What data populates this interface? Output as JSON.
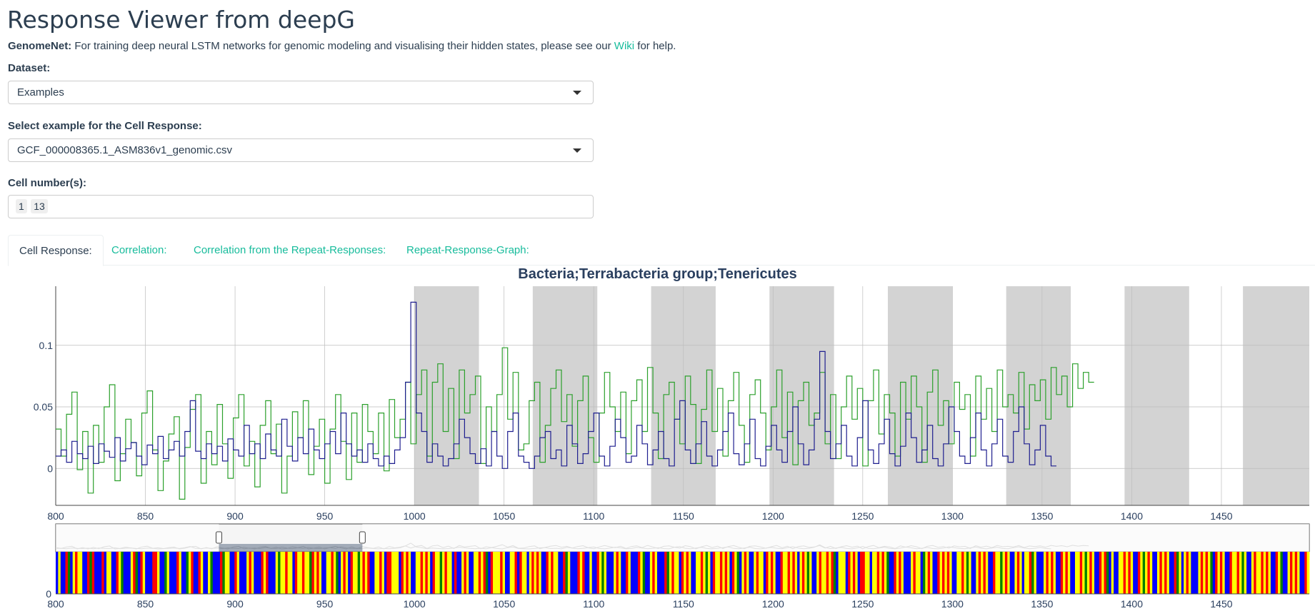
{
  "header": {
    "title": "Response Viewer from deepG",
    "help_prefix": "GenomeNet:",
    "help_text": " For training deep neural LSTM networks for genomic modeling and visualising their hidden states, please see our ",
    "help_link": "Wiki",
    "help_suffix": " for help."
  },
  "controls": {
    "dataset_label": "Dataset:",
    "dataset_value": "Examples",
    "example_label": "Select example for the Cell Response:",
    "example_value": "GCF_000008365.1_ASM836v1_genomic.csv",
    "cells_label": "Cell number(s):",
    "cells": [
      "1",
      "13"
    ]
  },
  "tabs": [
    {
      "label": "Cell Response:",
      "active": true
    },
    {
      "label": "Correlation:",
      "active": false
    },
    {
      "label": "Correlation from the Repeat-Responses:",
      "active": false
    },
    {
      "label": "Repeat-Response-Graph:",
      "active": false
    }
  ],
  "colors": {
    "series_green": "#2ca02c",
    "series_blue": "#1f1f8f",
    "highlight_band": "#d3d3d3",
    "nucleotide_A": "#0000ff",
    "nucleotide_C": "#ffff00",
    "nucleotide_G": "#ff0000",
    "nucleotide_T": "#008000",
    "accent": "#18bc9c"
  },
  "chart_data": {
    "type": "line",
    "title": "Bacteria;Terrabacteria group;Tenericutes",
    "xlabel": "",
    "ylabel": "",
    "xlim": [
      800,
      1499
    ],
    "ylim": [
      -0.03,
      0.148
    ],
    "x_ticks": [
      "800",
      "850",
      "900",
      "950",
      "1000",
      "1050",
      "1100",
      "1150",
      "1200",
      "1250",
      "1300",
      "1350",
      "1400",
      "1450"
    ],
    "y_ticks": [
      "0",
      "0.05",
      "0.1"
    ],
    "grid": true,
    "highlight_regions": [
      [
        1000,
        1036
      ],
      [
        1066,
        1102
      ],
      [
        1132,
        1168
      ],
      [
        1198,
        1234
      ],
      [
        1264,
        1300
      ],
      [
        1330,
        1366
      ],
      [
        1396,
        1432
      ],
      [
        1462,
        1499
      ]
    ],
    "series": [
      {
        "color": "green",
        "x_start": 800,
        "x_step": 3,
        "values": [
          0.032,
          0.01,
          0.044,
          0.062,
          -0.001,
          0.03,
          -0.02,
          0.035,
          0.005,
          0.05,
          0.068,
          -0.01,
          0.012,
          0.04,
          0.021,
          -0.006,
          0.045,
          0.063,
          0.015,
          -0.018,
          0.006,
          0.028,
          0.042,
          -0.025,
          0.017,
          0.048,
          0.06,
          -0.012,
          0.03,
          0.003,
          0.052,
          0.02,
          -0.008,
          0.041,
          0.06,
          0.002,
          0.022,
          -0.015,
          0.035,
          0.055,
          0.012,
          0.036,
          -0.02,
          0.01,
          0.046,
          0.025,
          0.055,
          -0.005,
          0.018,
          0.04,
          -0.012,
          0.032,
          0.06,
          0.022,
          -0.009,
          0.045,
          0.005,
          0.052,
          0.03,
          0.012,
          0.045,
          -0.002,
          0.056,
          0.025,
          0.04,
          0.07,
          0.02,
          0.06,
          0.08,
          0.01,
          0.07,
          0.085,
          0.03,
          0.065,
          0.008,
          0.08,
          0.045,
          0.06,
          0.075,
          0.004,
          0.05,
          0.03,
          0.06,
          0.098,
          0.04,
          0.078,
          0.015,
          0.02,
          0.055,
          0.07,
          0.005,
          0.035,
          0.065,
          0.08,
          0.038,
          0.06,
          0.018,
          0.055,
          0.075,
          0.025,
          0.005,
          0.045,
          0.078,
          0.05,
          0.03,
          0.062,
          0.012,
          0.055,
          0.072,
          0.03,
          0.082,
          0.045,
          0.008,
          0.06,
          0.07,
          0.04,
          0.02,
          0.075,
          0.052,
          0.004,
          0.048,
          0.08,
          0.03,
          0.065,
          0.01,
          0.055,
          0.078,
          0.035,
          0.005,
          0.06,
          0.072,
          0.045,
          0.015,
          0.05,
          0.08,
          0.025,
          0.062,
          0.003,
          0.055,
          0.07,
          0.035,
          0.045,
          0.078,
          0.02,
          0.06,
          0.008,
          0.05,
          0.075,
          0.04,
          0.065,
          0.002,
          0.055,
          0.08,
          0.028,
          0.06,
          0.045,
          0.01,
          0.07,
          0.04,
          0.075,
          0.05,
          0.005,
          0.062,
          0.08,
          0.035,
          0.055,
          0.02,
          0.07,
          0.048,
          0.06,
          0.01,
          0.075,
          0.04,
          0.065,
          0.03,
          0.08,
          0.05,
          0.06,
          0.045,
          0.078,
          0.032,
          0.068,
          0.055,
          0.072,
          0.04,
          0.082,
          0.06,
          0.075,
          0.05,
          0.085,
          0.065,
          0.078,
          0.07
        ]
      },
      {
        "color": "blue",
        "x_start": 800,
        "x_step": 3,
        "values": [
          0.01,
          0.015,
          0.005,
          0.022,
          0.012,
          0.008,
          0.018,
          0.004,
          0.02,
          0.014,
          0.009,
          0.025,
          0.006,
          0.016,
          0.021,
          0.01,
          0.003,
          0.019,
          0.012,
          0.026,
          0.008,
          0.015,
          0.022,
          0.01,
          0.03,
          0.055,
          0.014,
          0.008,
          0.02,
          0.012,
          0.018,
          0.006,
          0.024,
          0.015,
          0.01,
          0.035,
          0.012,
          0.02,
          0.008,
          0.028,
          0.015,
          0.01,
          0.04,
          0.018,
          0.006,
          0.025,
          0.012,
          0.032,
          0.015,
          0.008,
          0.02,
          0.03,
          0.012,
          0.045,
          0.02,
          0.01,
          0.015,
          0.005,
          0.02,
          0.008,
          0.002,
          0.01,
          0.004,
          0.015,
          0.025,
          0.07,
          0.135,
          0.045,
          0.03,
          0.005,
          0.02,
          0.01,
          0.002,
          0.008,
          0.02,
          0.04,
          0.025,
          0.012,
          0.004,
          0.016,
          0.002,
          0.03,
          0.01,
          0.0,
          0.03,
          0.045,
          0.01,
          0.005,
          0.0,
          0.01,
          0.025,
          0.03,
          0.008,
          0.015,
          0.002,
          0.035,
          0.02,
          0.004,
          0.012,
          0.03,
          0.045,
          0.01,
          0.002,
          0.018,
          0.04,
          0.025,
          0.005,
          0.01,
          0.035,
          0.02,
          0.003,
          0.015,
          0.03,
          0.008,
          0.002,
          0.04,
          0.055,
          0.015,
          0.004,
          0.02,
          0.038,
          0.01,
          0.002,
          0.015,
          0.03,
          0.045,
          0.012,
          0.003,
          0.02,
          0.04,
          0.008,
          0.002,
          0.018,
          0.035,
          0.015,
          0.005,
          0.03,
          0.05,
          0.02,
          0.003,
          0.015,
          0.04,
          0.095,
          0.03,
          0.008,
          0.02,
          0.035,
          0.01,
          0.002,
          0.025,
          0.055,
          0.015,
          0.004,
          0.02,
          0.04,
          0.012,
          0.002,
          0.018,
          0.045,
          0.025,
          0.005,
          0.015,
          0.035,
          0.008,
          0.002,
          0.02,
          0.05,
          0.03,
          0.01,
          0.004,
          0.025,
          0.045,
          0.015,
          0.002,
          0.02,
          0.04,
          0.01,
          0.005,
          0.03,
          0.05,
          0.02,
          0.003,
          0.015,
          0.035,
          0.01,
          0.002
        ]
      }
    ],
    "range_slider": {
      "x_ticks": [
        "800",
        "850",
        "900",
        "950",
        "1000",
        "1050",
        "1100",
        "1150",
        "1200",
        "1250",
        "1300",
        "1350",
        "1400",
        "1450"
      ],
      "y_tick": "0",
      "selected_range": [
        891,
        971
      ]
    },
    "nucleotide_track": {
      "legend": [
        "A",
        "C",
        "G",
        "T"
      ],
      "sequence": "ACAAGTACGCCAAGTGAAAGACCAAGCTAAACGTAGCAAAGGCAATCAAAGCAATCGAAGCAACTAAAGTCCAAGCAAACGCAAAGCGAAACTCCGCCAGCCGCCTGCGCAACCGCTACGCAGCCTCGCGAACCGCAGGCCCAGCGCAACCGCGCAGCCTCGCCAGAACGCAACCGCGTAGCCCGCAACCGAGCCACGCGCAAGCGCCAAGTCAAAGCGAACAAGCTCAAACGCAAGCAAAGCTAACGCAAAGTCGCCAGCGCAACCGCTCAGCCGCGCAGCTACGCAACGCCAGCGCAAGCCGCGCACGCTCAACGCCGCGTACCCAGCGCAGGCCACCGCGCTAAGCGCAAACGCCATCGCAAGCGCGCAACCGCTCAACGCGCAAGCCTCGCAACGCACCGTCAAACGCGCAAGCGCAACCGCTCGCAAGCGTACAACCGCGCAAGCTCGCAACGCGCAAGTCACGCAAACGCGCTAGCGCAAGCCGCTCAACGCCGCGCAAGCTAACGCGCAAGC"
    }
  }
}
